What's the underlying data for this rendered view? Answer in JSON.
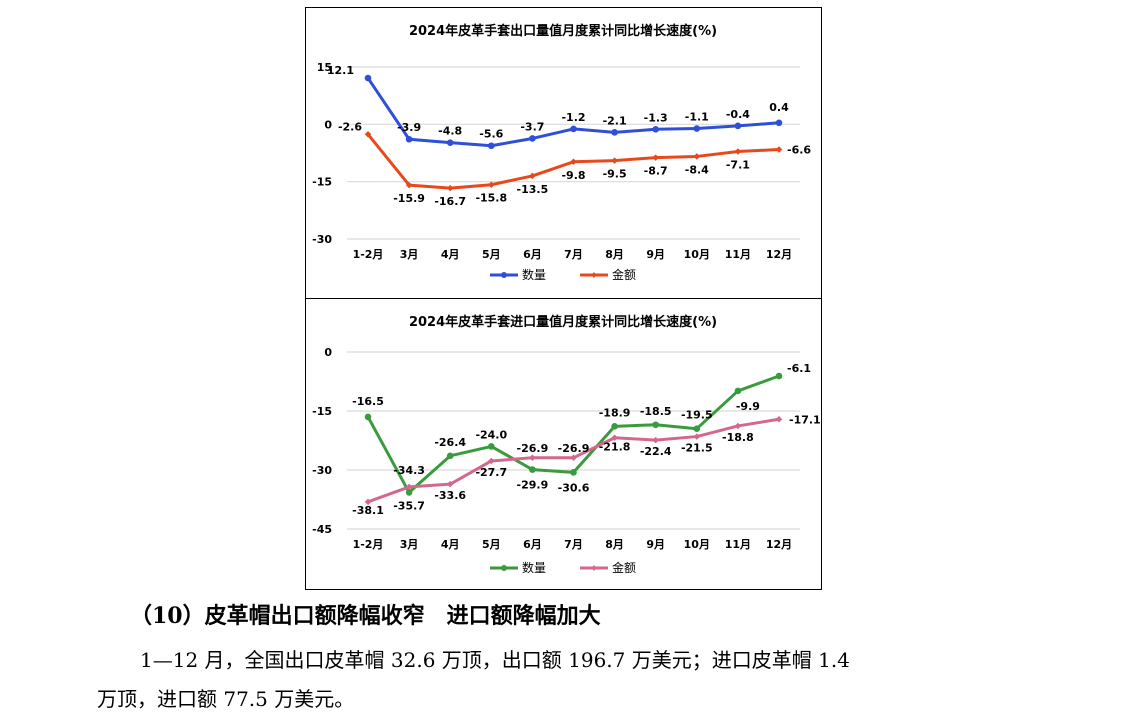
{
  "chart_data": [
    {
      "type": "line",
      "title": "2024年皮革手套出口量值月度累计同比增长速度(%)",
      "categories": [
        "1-2月",
        "3月",
        "4月",
        "5月",
        "6月",
        "7月",
        "8月",
        "9月",
        "10月",
        "11月",
        "12月"
      ],
      "ylim": [
        -30,
        15
      ],
      "yticks": [
        15,
        0,
        -15,
        -30
      ],
      "grid": true,
      "legend": "bottom",
      "series": [
        {
          "name": "数量",
          "color": "#2F4FD8",
          "marker": "circle",
          "values": [
            12.1,
            -3.9,
            -4.8,
            -5.6,
            -3.7,
            -1.2,
            -2.1,
            -1.3,
            -1.1,
            -0.4,
            0.4
          ]
        },
        {
          "name": "金额",
          "color": "#E8491C",
          "marker": "diamond",
          "values": [
            -2.6,
            -15.9,
            -16.7,
            -15.8,
            -13.5,
            -9.8,
            -9.5,
            -8.7,
            -8.4,
            -7.1,
            -6.6
          ]
        }
      ]
    },
    {
      "type": "line",
      "title": "2024年皮革手套进口量值月度累计同比增长速度(%)",
      "categories": [
        "1-2月",
        "3月",
        "4月",
        "5月",
        "6月",
        "7月",
        "8月",
        "9月",
        "10月",
        "11月",
        "12月"
      ],
      "ylim": [
        -45,
        0
      ],
      "yticks": [
        0,
        -15,
        -30,
        -45
      ],
      "grid": true,
      "legend": "bottom",
      "series": [
        {
          "name": "数量",
          "color": "#3A9A3E",
          "marker": "circle",
          "values": [
            -16.5,
            -35.7,
            -26.4,
            -24.0,
            -29.9,
            -30.6,
            -18.9,
            -18.5,
            -19.5,
            -9.9,
            -6.1
          ]
        },
        {
          "name": "金额",
          "color": "#D4688C",
          "marker": "diamond",
          "values": [
            -38.1,
            -34.3,
            -33.6,
            -27.7,
            -26.9,
            -26.9,
            -21.8,
            -22.4,
            -21.5,
            -18.8,
            -17.1
          ]
        }
      ]
    }
  ],
  "text": {
    "heading": "（10）皮革帽出口额降幅收窄　进口额降幅加大",
    "para_line1": "1—12 月，全国出口皮革帽 32.6 万顶，出口额 196.7 万美元；进口皮革帽 1.4",
    "para_line2": "万顶，进口额 77.5 万美元。"
  }
}
